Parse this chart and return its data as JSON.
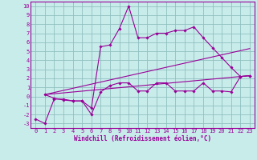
{
  "bg_color": "#c8ecea",
  "grid_color": "#90bfbf",
  "line_color": "#990099",
  "xlabel": "Windchill (Refroidissement éolien,°C)",
  "xlim": [
    -0.5,
    23.5
  ],
  "ylim": [
    -3.5,
    10.5
  ],
  "xticks": [
    0,
    1,
    2,
    3,
    4,
    5,
    6,
    7,
    8,
    9,
    10,
    11,
    12,
    13,
    14,
    15,
    16,
    17,
    18,
    19,
    20,
    21,
    22,
    23
  ],
  "yticks": [
    -3,
    -2,
    -1,
    0,
    1,
    2,
    3,
    4,
    5,
    6,
    7,
    8,
    9,
    10
  ],
  "series1_x": [
    0,
    1,
    2,
    3,
    4,
    5,
    6,
    7,
    8,
    9,
    10,
    11,
    12,
    13,
    14,
    15,
    16,
    17,
    18,
    19,
    20,
    21,
    22,
    23
  ],
  "series1_y": [
    -2.5,
    -3.0,
    -0.3,
    -0.3,
    -0.5,
    -0.5,
    -1.3,
    5.5,
    5.7,
    7.5,
    10.0,
    6.5,
    6.5,
    7.0,
    7.0,
    7.3,
    7.3,
    7.7,
    6.5,
    5.4,
    4.3,
    3.2,
    2.2,
    2.3
  ],
  "series2_x": [
    1,
    2,
    3,
    4,
    5,
    6,
    7,
    8,
    9,
    10,
    11,
    12,
    13,
    14,
    15,
    16,
    17,
    18,
    19,
    20,
    21,
    22,
    23
  ],
  "series2_y": [
    0.2,
    -0.2,
    -0.4,
    -0.5,
    -0.5,
    -2.0,
    0.5,
    1.2,
    1.5,
    1.5,
    0.6,
    0.6,
    1.5,
    1.5,
    0.6,
    0.6,
    0.6,
    1.5,
    0.6,
    0.6,
    0.5,
    2.2,
    2.3
  ],
  "trend1_x": [
    1,
    23
  ],
  "trend1_y": [
    0.2,
    2.3
  ],
  "trend2_x": [
    1,
    23
  ],
  "trend2_y": [
    0.2,
    5.3
  ],
  "markersize": 1.8,
  "linewidth": 0.8,
  "tick_fontsize": 5.0,
  "xlabel_fontsize": 5.5
}
